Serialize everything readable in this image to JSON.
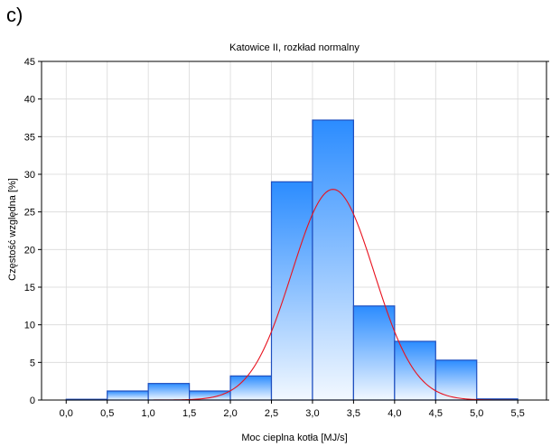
{
  "panel_label": "c)",
  "chart_data": {
    "type": "bar",
    "title": "Katowice II, rozkład normalny",
    "xlabel": "Moc cieplna kotła [MJ/s]",
    "ylabel": "Częstość względna [%]",
    "xlim": [
      -0.3,
      5.85
    ],
    "ylim": [
      0,
      45
    ],
    "x_ticks": [
      0,
      0.5,
      1,
      1.5,
      2,
      2.5,
      3,
      3.5,
      4,
      4.5,
      5,
      5.5
    ],
    "x_tick_labels": [
      "0,0",
      "0,5",
      "1,0",
      "1,5",
      "2,0",
      "2,5",
      "3,0",
      "3,5",
      "4,0",
      "4,5",
      "5,0",
      "5,5"
    ],
    "y_ticks": [
      0,
      5,
      10,
      15,
      20,
      25,
      30,
      35,
      40,
      45
    ],
    "y_tick_labels": [
      "0",
      "5",
      "10",
      "15",
      "20",
      "25",
      "30",
      "35",
      "40",
      "45"
    ],
    "bins": [
      {
        "x0": 0.0,
        "x1": 0.5,
        "value": 0.1
      },
      {
        "x0": 0.5,
        "x1": 1.0,
        "value": 1.2
      },
      {
        "x0": 1.0,
        "x1": 1.5,
        "value": 2.2
      },
      {
        "x0": 1.5,
        "x1": 2.0,
        "value": 1.2
      },
      {
        "x0": 2.0,
        "x1": 2.5,
        "value": 3.2
      },
      {
        "x0": 2.5,
        "x1": 3.0,
        "value": 29.0
      },
      {
        "x0": 3.0,
        "x1": 3.5,
        "value": 37.2
      },
      {
        "x0": 3.5,
        "x1": 4.0,
        "value": 12.5
      },
      {
        "x0": 4.0,
        "x1": 4.5,
        "value": 7.8
      },
      {
        "x0": 4.5,
        "x1": 5.0,
        "value": 5.3
      },
      {
        "x0": 5.0,
        "x1": 5.5,
        "value": 0.15
      }
    ],
    "normal_curve": {
      "mean": 3.25,
      "sd": 0.5,
      "peak": 28.0
    },
    "colors": {
      "bar_top": "#2b8cff",
      "bar_bottom": "#f2f8ff",
      "bar_edge": "#1f4fbf",
      "curve": "#e8121e",
      "grid": "#d9d9d9"
    },
    "grid": true
  }
}
